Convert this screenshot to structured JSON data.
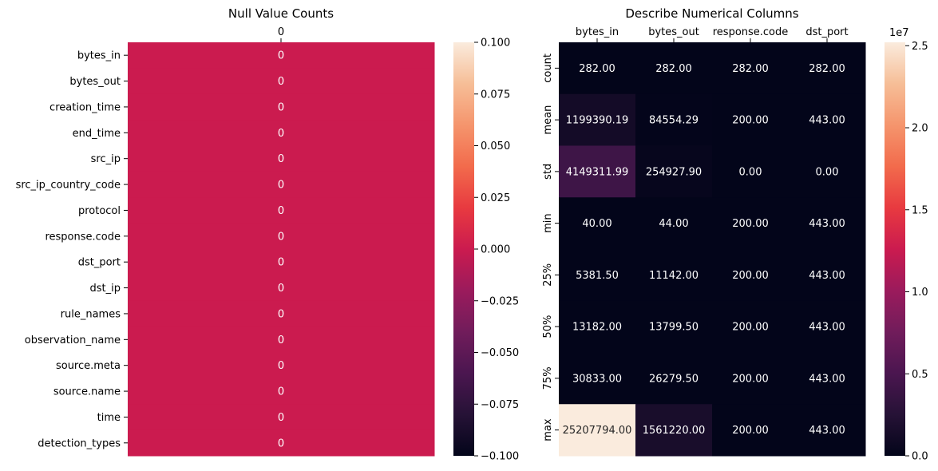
{
  "chart_data": [
    {
      "type": "heatmap",
      "title": "Null Value Counts",
      "columns": [
        "0"
      ],
      "rows": [
        "bytes_in",
        "bytes_out",
        "creation_time",
        "end_time",
        "src_ip",
        "src_ip_country_code",
        "protocol",
        "response.code",
        "dst_port",
        "dst_ip",
        "rule_names",
        "observation_name",
        "source.meta",
        "source.name",
        "time",
        "detection_types"
      ],
      "values": [
        [
          0
        ],
        [
          0
        ],
        [
          0
        ],
        [
          0
        ],
        [
          0
        ],
        [
          0
        ],
        [
          0
        ],
        [
          0
        ],
        [
          0
        ],
        [
          0
        ],
        [
          0
        ],
        [
          0
        ],
        [
          0
        ],
        [
          0
        ],
        [
          0
        ],
        [
          0
        ]
      ],
      "annotations": [
        [
          "0"
        ],
        [
          "0"
        ],
        [
          "0"
        ],
        [
          "0"
        ],
        [
          "0"
        ],
        [
          "0"
        ],
        [
          "0"
        ],
        [
          "0"
        ],
        [
          "0"
        ],
        [
          "0"
        ],
        [
          "0"
        ],
        [
          "0"
        ],
        [
          "0"
        ],
        [
          "0"
        ],
        [
          "0"
        ],
        [
          "0"
        ]
      ],
      "colorbar": {
        "range": [
          -0.1,
          0.1
        ],
        "ticks": [
          0.1,
          0.075,
          0.05,
          0.025,
          0.0,
          -0.025,
          -0.05,
          -0.075,
          -0.1
        ],
        "tick_labels": [
          "0.100",
          "0.075",
          "0.050",
          "0.025",
          "0.000",
          "−0.025",
          "−0.050",
          "−0.075",
          "−0.100"
        ]
      },
      "colormap": "rocket"
    },
    {
      "type": "heatmap",
      "title": "Describe Numerical Columns",
      "columns": [
        "bytes_in",
        "bytes_out",
        "response.code",
        "dst_port"
      ],
      "rows": [
        "count",
        "mean",
        "std",
        "min",
        "25%",
        "50%",
        "75%",
        "max"
      ],
      "values": [
        [
          282.0,
          282.0,
          282.0,
          282.0
        ],
        [
          1199390.19,
          84554.29,
          200.0,
          443.0
        ],
        [
          4149311.99,
          254927.9,
          0.0,
          0.0
        ],
        [
          40.0,
          44.0,
          200.0,
          443.0
        ],
        [
          5381.5,
          11142.0,
          200.0,
          443.0
        ],
        [
          13182.0,
          13799.5,
          200.0,
          443.0
        ],
        [
          30833.0,
          26279.5,
          200.0,
          443.0
        ],
        [
          25207794.0,
          1561220.0,
          200.0,
          443.0
        ]
      ],
      "annotations": [
        [
          "282.00",
          "282.00",
          "282.00",
          "282.00"
        ],
        [
          "1199390.19",
          "84554.29",
          "200.00",
          "443.00"
        ],
        [
          "4149311.99",
          "254927.90",
          "0.00",
          "0.00"
        ],
        [
          "40.00",
          "44.00",
          "200.00",
          "443.00"
        ],
        [
          "5381.50",
          "11142.00",
          "200.00",
          "443.00"
        ],
        [
          "13182.00",
          "13799.50",
          "200.00",
          "443.00"
        ],
        [
          "30833.00",
          "26279.50",
          "200.00",
          "443.00"
        ],
        [
          "25207794.00",
          "1561220.00",
          "200.00",
          "443.00"
        ]
      ],
      "colorbar": {
        "range": [
          0,
          25207794.0
        ],
        "ticks": [
          0,
          5000000,
          10000000,
          15000000,
          20000000,
          25000000
        ],
        "tick_labels": [
          "0.0",
          "0.5",
          "1.0",
          "1.5",
          "2.0",
          "2.5"
        ],
        "offset_label": "1e7"
      },
      "colormap": "rocket"
    }
  ]
}
